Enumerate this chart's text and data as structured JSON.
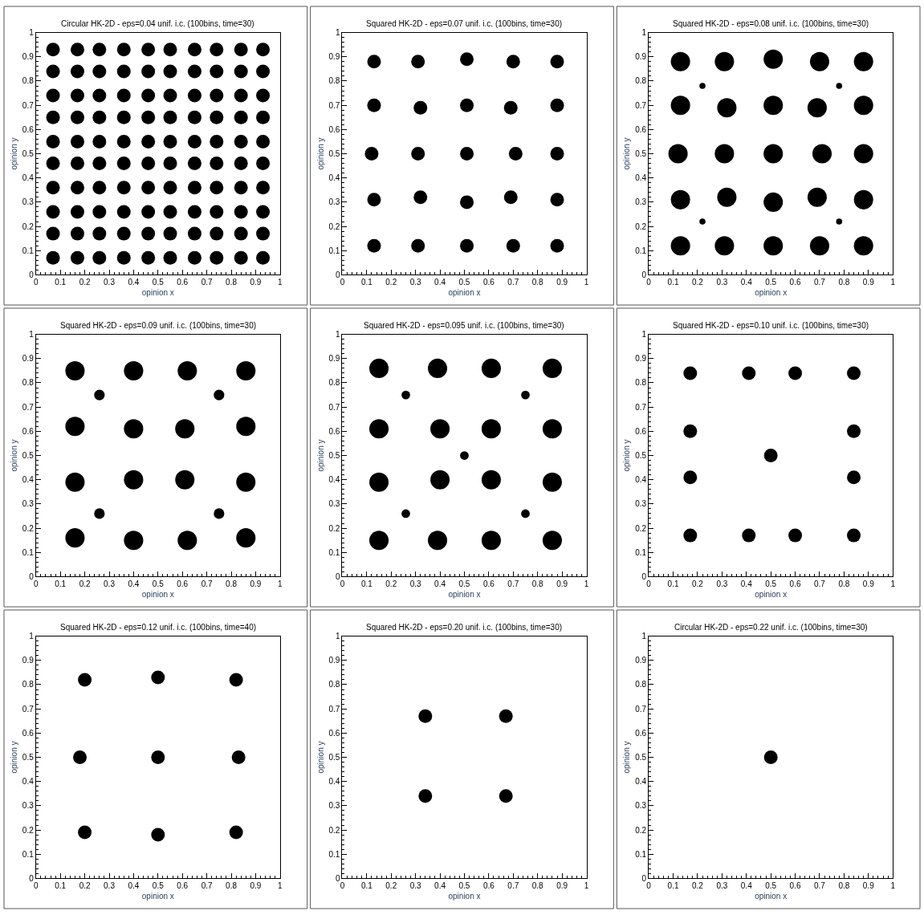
{
  "chart_data": [
    {
      "type": "scatter",
      "title": "Circular HK-2D - eps=0.04 unif. i.c. (100bins, time=30)",
      "xlabel": "opinion x",
      "ylabel": "opinion y",
      "xlim": [
        0,
        1
      ],
      "ylim": [
        0,
        1
      ],
      "xticks": [
        0,
        0.1,
        0.2,
        0.3,
        0.4,
        0.5,
        0.6,
        0.7,
        0.8,
        0.9,
        1
      ],
      "yticks": [
        0,
        0.1,
        0.2,
        0.3,
        0.4,
        0.5,
        0.6,
        0.7,
        0.8,
        0.9,
        1
      ],
      "marker": "circle",
      "series": [
        {
          "color": "#000000",
          "x": [
            0.07,
            0.17,
            0.26,
            0.36,
            0.46,
            0.55,
            0.65,
            0.74,
            0.84,
            0.93,
            0.07,
            0.17,
            0.26,
            0.36,
            0.46,
            0.55,
            0.65,
            0.74,
            0.84,
            0.93,
            0.07,
            0.17,
            0.26,
            0.36,
            0.46,
            0.55,
            0.65,
            0.74,
            0.84,
            0.93,
            0.07,
            0.17,
            0.26,
            0.36,
            0.46,
            0.55,
            0.65,
            0.74,
            0.84,
            0.93,
            0.07,
            0.17,
            0.26,
            0.36,
            0.46,
            0.55,
            0.65,
            0.74,
            0.84,
            0.93,
            0.07,
            0.17,
            0.26,
            0.36,
            0.46,
            0.55,
            0.65,
            0.74,
            0.84,
            0.93,
            0.07,
            0.17,
            0.26,
            0.36,
            0.46,
            0.55,
            0.65,
            0.74,
            0.84,
            0.93,
            0.07,
            0.17,
            0.26,
            0.36,
            0.46,
            0.55,
            0.65,
            0.74,
            0.84,
            0.93,
            0.07,
            0.17,
            0.26,
            0.36,
            0.46,
            0.55,
            0.65,
            0.74,
            0.84,
            0.93,
            0.07,
            0.17,
            0.26,
            0.36,
            0.46,
            0.55,
            0.65,
            0.74,
            0.84,
            0.93
          ],
          "values": [
            0.93,
            0.93,
            0.93,
            0.93,
            0.93,
            0.93,
            0.93,
            0.93,
            0.93,
            0.93,
            0.84,
            0.84,
            0.84,
            0.84,
            0.84,
            0.84,
            0.84,
            0.84,
            0.84,
            0.84,
            0.74,
            0.74,
            0.74,
            0.74,
            0.74,
            0.74,
            0.74,
            0.74,
            0.74,
            0.74,
            0.65,
            0.65,
            0.65,
            0.65,
            0.65,
            0.65,
            0.65,
            0.65,
            0.65,
            0.65,
            0.55,
            0.55,
            0.55,
            0.55,
            0.55,
            0.55,
            0.55,
            0.55,
            0.55,
            0.55,
            0.46,
            0.46,
            0.46,
            0.46,
            0.46,
            0.46,
            0.46,
            0.46,
            0.46,
            0.46,
            0.36,
            0.36,
            0.36,
            0.36,
            0.36,
            0.36,
            0.36,
            0.36,
            0.36,
            0.36,
            0.26,
            0.26,
            0.26,
            0.26,
            0.26,
            0.26,
            0.26,
            0.26,
            0.26,
            0.26,
            0.17,
            0.17,
            0.17,
            0.17,
            0.17,
            0.17,
            0.17,
            0.17,
            0.17,
            0.17,
            0.07,
            0.07,
            0.07,
            0.07,
            0.07,
            0.07,
            0.07,
            0.07,
            0.07,
            0.07
          ]
        }
      ]
    },
    {
      "type": "scatter",
      "title": "Squared HK-2D - eps=0.07 unif. i.c. (100bins, time=30)",
      "xlabel": "opinion x",
      "ylabel": "opinion y",
      "xlim": [
        0,
        1
      ],
      "ylim": [
        0,
        1
      ],
      "xticks": [
        0,
        0.1,
        0.2,
        0.3,
        0.4,
        0.5,
        0.6,
        0.7,
        0.8,
        0.9,
        1
      ],
      "yticks": [
        0,
        0.1,
        0.2,
        0.3,
        0.4,
        0.5,
        0.6,
        0.7,
        0.8,
        0.9,
        1
      ],
      "marker": "circle",
      "series": [
        {
          "color": "#000000",
          "x": [
            0.13,
            0.31,
            0.51,
            0.7,
            0.88,
            0.13,
            0.32,
            0.51,
            0.69,
            0.88,
            0.12,
            0.31,
            0.51,
            0.71,
            0.88,
            0.13,
            0.32,
            0.51,
            0.69,
            0.88,
            0.13,
            0.31,
            0.51,
            0.7,
            0.88
          ],
          "values": [
            0.88,
            0.88,
            0.89,
            0.88,
            0.88,
            0.7,
            0.69,
            0.7,
            0.69,
            0.7,
            0.5,
            0.5,
            0.5,
            0.5,
            0.5,
            0.31,
            0.32,
            0.3,
            0.32,
            0.31,
            0.12,
            0.12,
            0.12,
            0.12,
            0.12
          ]
        }
      ]
    },
    {
      "type": "bubble",
      "title": "Squared HK-2D - eps=0.08 unif. i.c. (100bins, time=30)",
      "xlabel": "opinion x",
      "ylabel": "opinion y",
      "xlim": [
        0,
        1
      ],
      "ylim": [
        0,
        1
      ],
      "xticks": [
        0,
        0.1,
        0.2,
        0.3,
        0.4,
        0.5,
        0.6,
        0.7,
        0.8,
        0.9,
        1
      ],
      "yticks": [
        0,
        0.1,
        0.2,
        0.3,
        0.4,
        0.5,
        0.6,
        0.7,
        0.8,
        0.9,
        1
      ],
      "marker": "circle",
      "series": [
        {
          "color": "#000000",
          "x": [
            0.13,
            0.31,
            0.51,
            0.7,
            0.88,
            0.13,
            0.32,
            0.51,
            0.69,
            0.88,
            0.12,
            0.31,
            0.51,
            0.71,
            0.88,
            0.13,
            0.32,
            0.51,
            0.69,
            0.88,
            0.13,
            0.31,
            0.51,
            0.7,
            0.88,
            0.22,
            0.78,
            0.22,
            0.78
          ],
          "values": [
            0.88,
            0.88,
            0.89,
            0.88,
            0.88,
            0.7,
            0.69,
            0.7,
            0.69,
            0.7,
            0.5,
            0.5,
            0.5,
            0.5,
            0.5,
            0.31,
            0.32,
            0.3,
            0.32,
            0.31,
            0.12,
            0.12,
            0.12,
            0.12,
            0.12,
            0.78,
            0.78,
            0.22,
            0.22
          ],
          "sizes": [
            1,
            1,
            1,
            1,
            1,
            1,
            1,
            1,
            1,
            1,
            1,
            1,
            1,
            1,
            1,
            1,
            1,
            1,
            1,
            1,
            1,
            1,
            1,
            1,
            1,
            0.1,
            0.1,
            0.1,
            0.1
          ]
        }
      ]
    },
    {
      "type": "bubble",
      "title": "Squared HK-2D - eps=0.09 unif. i.c. (100bins, time=30)",
      "xlabel": "opinion x",
      "ylabel": "opinion y",
      "xlim": [
        0,
        1
      ],
      "ylim": [
        0,
        1
      ],
      "xticks": [
        0,
        0.1,
        0.2,
        0.3,
        0.4,
        0.5,
        0.6,
        0.7,
        0.8,
        0.9,
        1
      ],
      "yticks": [
        0,
        0.1,
        0.2,
        0.3,
        0.4,
        0.5,
        0.6,
        0.7,
        0.8,
        0.9,
        1
      ],
      "marker": "circle",
      "series": [
        {
          "color": "#000000",
          "x": [
            0.16,
            0.4,
            0.62,
            0.86,
            0.16,
            0.4,
            0.61,
            0.86,
            0.16,
            0.4,
            0.61,
            0.86,
            0.16,
            0.4,
            0.62,
            0.86,
            0.26,
            0.75,
            0.26,
            0.75
          ],
          "values": [
            0.85,
            0.85,
            0.85,
            0.85,
            0.62,
            0.61,
            0.61,
            0.62,
            0.39,
            0.4,
            0.4,
            0.39,
            0.16,
            0.15,
            0.15,
            0.16,
            0.75,
            0.75,
            0.26,
            0.26
          ],
          "sizes": [
            1,
            1,
            1,
            1,
            1,
            1,
            1,
            1,
            1,
            1,
            1,
            1,
            1,
            1,
            1,
            1,
            0.3,
            0.3,
            0.3,
            0.3
          ]
        }
      ]
    },
    {
      "type": "bubble",
      "title": "Squared HK-2D - eps=0.095 unif. i.c. (100bins, time=30)",
      "xlabel": "opinion x",
      "ylabel": "opinion y",
      "xlim": [
        0,
        1
      ],
      "ylim": [
        0,
        1
      ],
      "xticks": [
        0,
        0.1,
        0.2,
        0.3,
        0.4,
        0.5,
        0.6,
        0.7,
        0.8,
        0.9,
        1
      ],
      "yticks": [
        0,
        0.1,
        0.2,
        0.3,
        0.4,
        0.5,
        0.6,
        0.7,
        0.8,
        0.9,
        1
      ],
      "marker": "circle",
      "series": [
        {
          "color": "#000000",
          "x": [
            0.15,
            0.39,
            0.61,
            0.86,
            0.15,
            0.4,
            0.61,
            0.86,
            0.15,
            0.4,
            0.61,
            0.86,
            0.15,
            0.39,
            0.61,
            0.86,
            0.26,
            0.75,
            0.5,
            0.26,
            0.75
          ],
          "values": [
            0.86,
            0.86,
            0.86,
            0.86,
            0.61,
            0.61,
            0.61,
            0.61,
            0.39,
            0.4,
            0.4,
            0.39,
            0.15,
            0.15,
            0.15,
            0.15,
            0.75,
            0.75,
            0.5,
            0.26,
            0.26
          ],
          "sizes": [
            1,
            1,
            1,
            1,
            1,
            1,
            1,
            1,
            1,
            1,
            1,
            1,
            1,
            1,
            1,
            1,
            0.2,
            0.2,
            0.2,
            0.2,
            0.2
          ]
        }
      ]
    },
    {
      "type": "scatter",
      "title": "Squared HK-2D - eps=0.10 unif. i.c. (100bins, time=30)",
      "xlabel": "opinion x",
      "ylabel": "opinion y",
      "xlim": [
        0,
        1
      ],
      "ylim": [
        0,
        1
      ],
      "xticks": [
        0,
        0.1,
        0.2,
        0.3,
        0.4,
        0.5,
        0.6,
        0.7,
        0.8,
        0.9,
        1
      ],
      "yticks": [
        0,
        0.1,
        0.2,
        0.3,
        0.4,
        0.5,
        0.6,
        0.7,
        0.8,
        0.9,
        1
      ],
      "marker": "circle",
      "series": [
        {
          "color": "#000000",
          "x": [
            0.17,
            0.41,
            0.6,
            0.84,
            0.17,
            0.84,
            0.5,
            0.17,
            0.84,
            0.17,
            0.41,
            0.6,
            0.84
          ],
          "values": [
            0.84,
            0.84,
            0.84,
            0.84,
            0.6,
            0.6,
            0.5,
            0.41,
            0.41,
            0.17,
            0.17,
            0.17,
            0.17
          ]
        }
      ]
    },
    {
      "type": "scatter",
      "title": "Squared HK-2D - eps=0.12 unif. i.c. (100bins, time=40)",
      "xlabel": "opinion x",
      "ylabel": "opinion y",
      "xlim": [
        0,
        1
      ],
      "ylim": [
        0,
        1
      ],
      "xticks": [
        0,
        0.1,
        0.2,
        0.3,
        0.4,
        0.5,
        0.6,
        0.7,
        0.8,
        0.9,
        1
      ],
      "yticks": [
        0,
        0.1,
        0.2,
        0.3,
        0.4,
        0.5,
        0.6,
        0.7,
        0.8,
        0.9,
        1
      ],
      "marker": "circle",
      "series": [
        {
          "color": "#000000",
          "x": [
            0.2,
            0.5,
            0.82,
            0.18,
            0.5,
            0.83,
            0.2,
            0.5,
            0.82
          ],
          "values": [
            0.82,
            0.83,
            0.82,
            0.5,
            0.5,
            0.5,
            0.19,
            0.18,
            0.19
          ]
        }
      ]
    },
    {
      "type": "scatter",
      "title": "Squared HK-2D - eps=0.20 unif. i.c. (100bins, time=30)",
      "xlabel": "opinion x",
      "ylabel": "opinion y",
      "xlim": [
        0,
        1
      ],
      "ylim": [
        0,
        1
      ],
      "xticks": [
        0,
        0.1,
        0.2,
        0.3,
        0.4,
        0.5,
        0.6,
        0.7,
        0.8,
        0.9,
        1
      ],
      "yticks": [
        0,
        0.1,
        0.2,
        0.3,
        0.4,
        0.5,
        0.6,
        0.7,
        0.8,
        0.9,
        1
      ],
      "marker": "circle",
      "series": [
        {
          "color": "#000000",
          "x": [
            0.34,
            0.67,
            0.34,
            0.67
          ],
          "values": [
            0.67,
            0.67,
            0.34,
            0.34
          ]
        }
      ]
    },
    {
      "type": "scatter",
      "title": "Circular HK-2D - eps=0.22 unif. i.c. (100bins, time=30)",
      "xlabel": "opinion x",
      "ylabel": "opinion y",
      "xlim": [
        0,
        1
      ],
      "ylim": [
        0,
        1
      ],
      "xticks": [
        0,
        0.1,
        0.2,
        0.3,
        0.4,
        0.5,
        0.6,
        0.7,
        0.8,
        0.9,
        1
      ],
      "yticks": [
        0,
        0.1,
        0.2,
        0.3,
        0.4,
        0.5,
        0.6,
        0.7,
        0.8,
        0.9,
        1
      ],
      "marker": "circle",
      "series": [
        {
          "color": "#000000",
          "x": [
            0.5
          ],
          "values": [
            0.5
          ]
        }
      ]
    }
  ]
}
